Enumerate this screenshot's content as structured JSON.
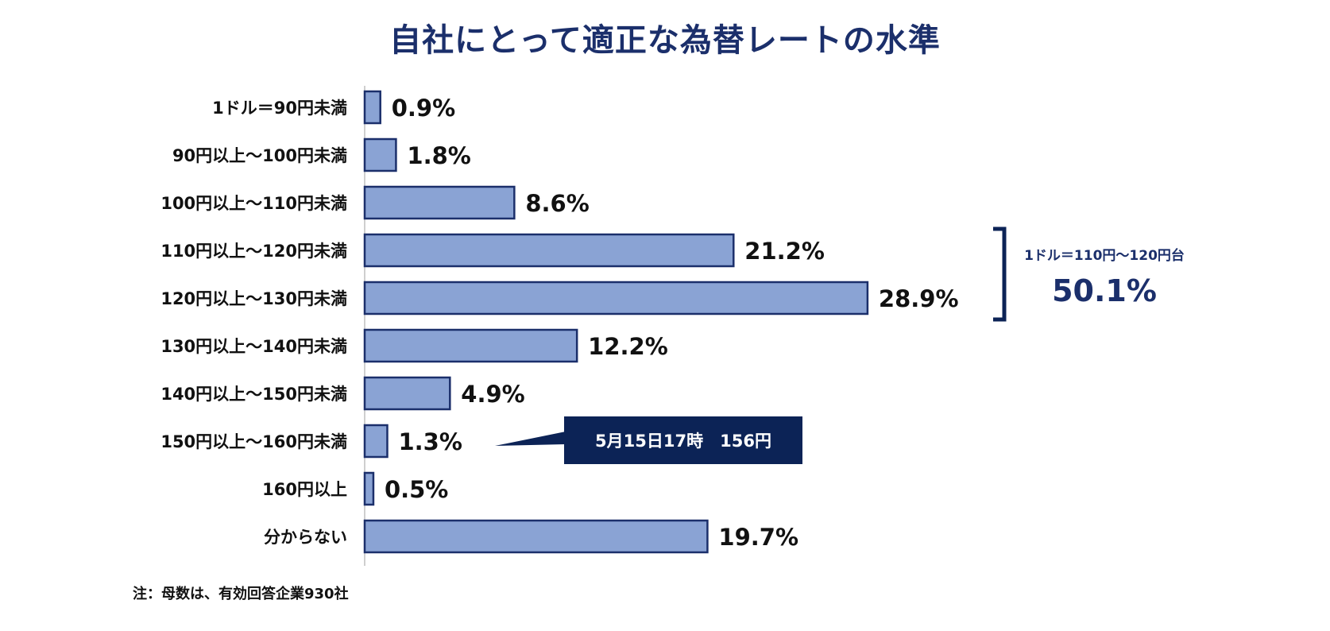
{
  "title": "自社にとって適正な為替レートの水準",
  "chart_data": {
    "type": "bar",
    "orientation": "horizontal",
    "title": "自社にとって適正な為替レートの水準",
    "categories": [
      "1ドル＝90円未満",
      "90円以上～100円未満",
      "100円以上～110円未満",
      "110円以上～120円未満",
      "120円以上～130円未満",
      "130円以上～140円未満",
      "140円以上～150円未満",
      "150円以上～160円未満",
      "160円以上",
      "分からない"
    ],
    "values": [
      0.9,
      1.8,
      8.6,
      21.2,
      28.9,
      12.2,
      4.9,
      1.3,
      0.5,
      19.7
    ],
    "value_labels": [
      "0.9%",
      "1.8%",
      "8.6%",
      "21.2%",
      "28.9%",
      "12.2%",
      "4.9%",
      "1.3%",
      "0.5%",
      "19.7%"
    ],
    "unit": "%",
    "xlim": [
      0,
      30
    ],
    "grid": false,
    "colors": {
      "bar_fill": "#8aa3d4",
      "bar_stroke": "#1b2f6b",
      "accent": "#0c2356"
    },
    "annotations": {
      "callout": {
        "text": "5月15日17時　156円",
        "category": "150円以上～160円未満"
      },
      "bracket": {
        "label": "1ドル＝110円～120円台",
        "value": "50.1%",
        "categories": [
          "110円以上～120円未満",
          "120円以上～130円未満"
        ]
      }
    }
  },
  "note": "注：母数は、有効回答企業930社"
}
